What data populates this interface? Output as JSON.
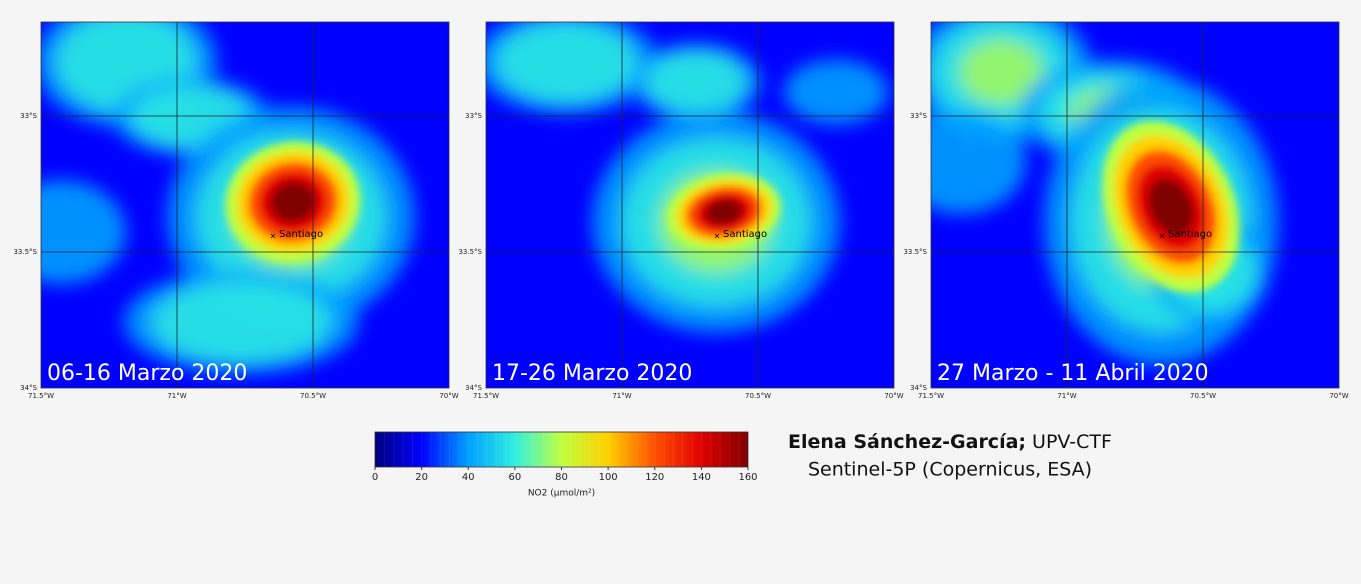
{
  "panels": [
    {
      "label": "06-16 Marzo 2020"
    },
    {
      "label": "17-26 Marzo 2020"
    },
    {
      "label": "27 Marzo - 11 Abril 2020"
    }
  ],
  "lat_ticks": [
    "33°S",
    "33.5°S",
    "34°S"
  ],
  "lon_ticks": [
    "71.5°W",
    "71°W",
    "70.5°W",
    "70°W"
  ],
  "city": "Santiago",
  "colorbar": {
    "label": "NO2 (μmol/m²)",
    "range": [
      0,
      160
    ],
    "ticks": [
      0,
      20,
      40,
      60,
      80,
      100,
      120,
      140,
      160
    ],
    "colors": [
      "#00007f",
      "#0000ff",
      "#00a0ff",
      "#30f0e0",
      "#c0ff40",
      "#ffd000",
      "#ff5000",
      "#e00000",
      "#800000"
    ]
  },
  "credit": {
    "author": "Elena Sánchez-García;",
    "org": " UPV-CTF",
    "source": "Sentinel-5P (Copernicus, ESA)"
  }
}
